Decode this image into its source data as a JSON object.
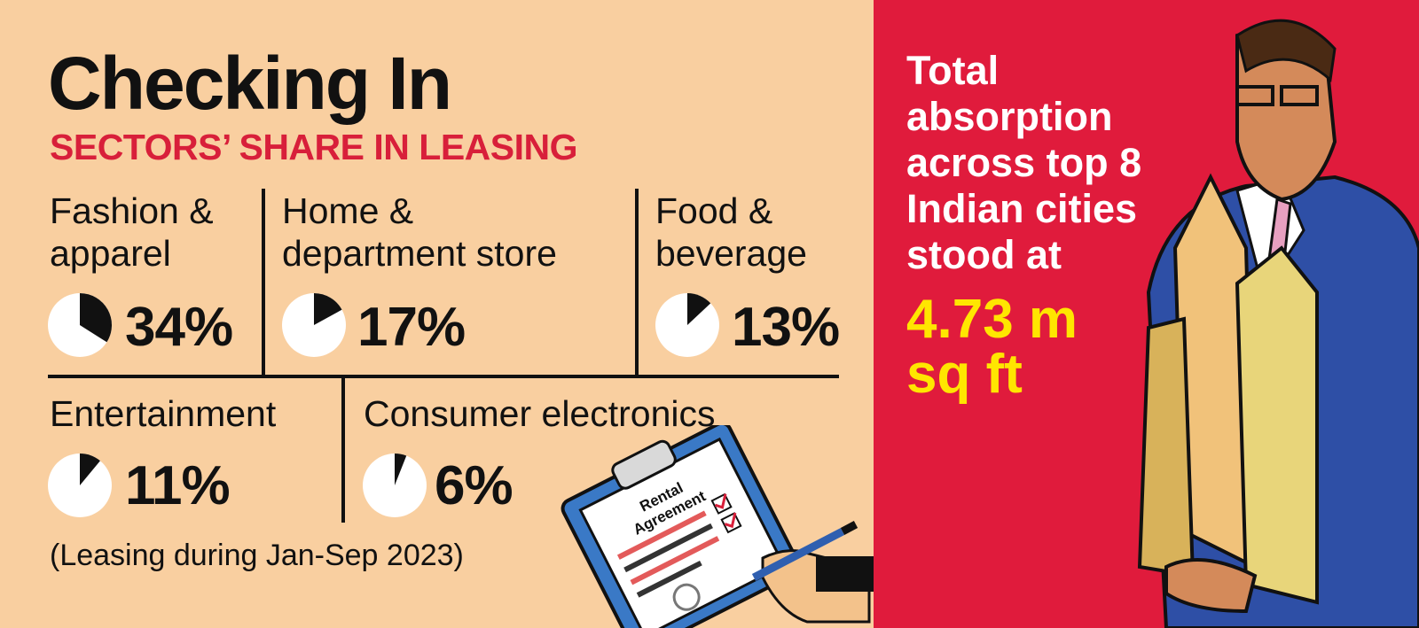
{
  "title": "Checking In",
  "subtitle": "SECTORS’ SHARE IN LEASING",
  "note": "(Leasing during Jan-Sep 2023)",
  "side_text": "Total\nabsorption\nacross top 8\nIndian cities\nstood at",
  "highlight": "4.73 m\nsq ft",
  "clipboard_text": "Rental\nAgreement",
  "colors": {
    "background": "#f9cfa0",
    "accent": "#e01b3c",
    "highlight": "#ffe600",
    "subtitle": "#d81f3a"
  },
  "chart_data": {
    "type": "pie",
    "title": "SECTORS’ SHARE IN LEASING",
    "categories": [
      "Fashion &\napparel",
      "Home &\ndepartment store",
      "Food &\nbeverage",
      "Entertainment",
      "Consumer electronics"
    ],
    "values": [
      34,
      17,
      13,
      11,
      6
    ],
    "value_labels": [
      "34%",
      "17%",
      "13%",
      "11%",
      "6%"
    ],
    "unit": "%"
  }
}
